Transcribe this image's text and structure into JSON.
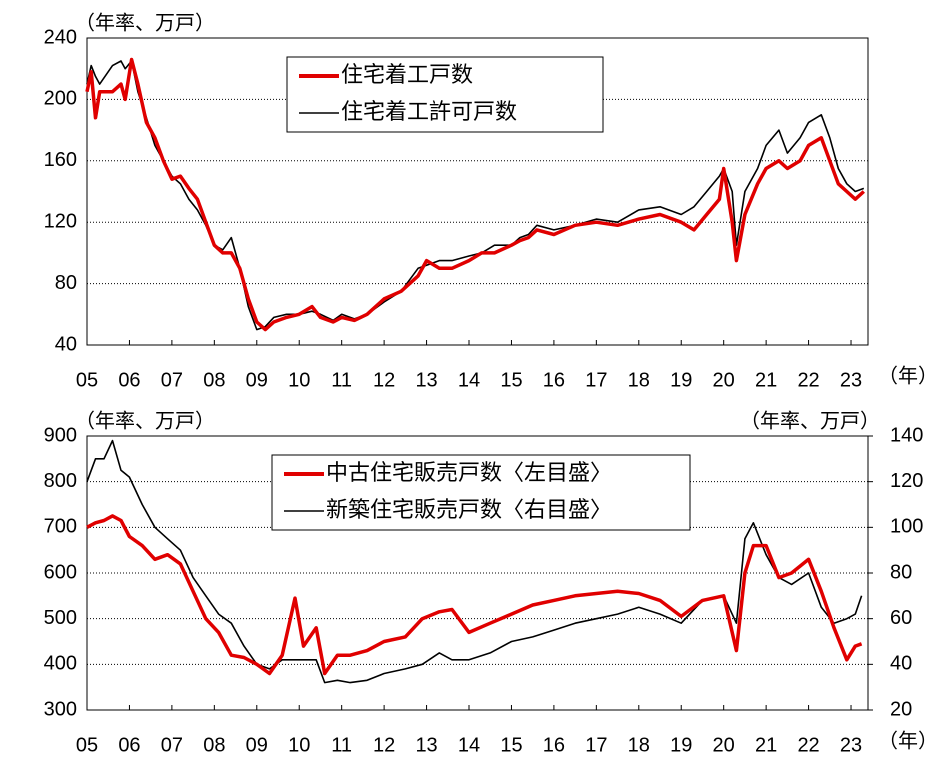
{
  "chart_data": [
    {
      "type": "line",
      "y_label": "（年率、万戸）",
      "x_label": "（年）",
      "xlim": [
        2005,
        2023.4
      ],
      "xticks": [
        {
          "value": 2005,
          "label": "05"
        },
        {
          "value": 2006,
          "label": "06"
        },
        {
          "value": 2007,
          "label": "07"
        },
        {
          "value": 2008,
          "label": "08"
        },
        {
          "value": 2009,
          "label": "09"
        },
        {
          "value": 2010,
          "label": "10"
        },
        {
          "value": 2011,
          "label": "11"
        },
        {
          "value": 2012,
          "label": "12"
        },
        {
          "value": 2013,
          "label": "13"
        },
        {
          "value": 2014,
          "label": "14"
        },
        {
          "value": 2015,
          "label": "15"
        },
        {
          "value": 2016,
          "label": "16"
        },
        {
          "value": 2017,
          "label": "17"
        },
        {
          "value": 2018,
          "label": "18"
        },
        {
          "value": 2019,
          "label": "19"
        },
        {
          "value": 2020,
          "label": "20"
        },
        {
          "value": 2021,
          "label": "21"
        },
        {
          "value": 2022,
          "label": "22"
        },
        {
          "value": 2023,
          "label": "23"
        }
      ],
      "ylim": [
        40,
        240
      ],
      "yticks": [
        40,
        80,
        120,
        160,
        200,
        240
      ],
      "grid": true,
      "x": [
        2005.0,
        2005.1,
        2005.2,
        2005.3,
        2005.6,
        2005.8,
        2005.9,
        2006.05,
        2006.2,
        2006.4,
        2006.6,
        2006.8,
        2007.0,
        2007.2,
        2007.4,
        2007.6,
        2007.8,
        2008.0,
        2008.2,
        2008.4,
        2008.6,
        2008.8,
        2009.0,
        2009.2,
        2009.4,
        2009.7,
        2010.0,
        2010.3,
        2010.5,
        2010.8,
        2011.0,
        2011.3,
        2011.6,
        2012.0,
        2012.4,
        2012.8,
        2013.0,
        2013.3,
        2013.6,
        2014.0,
        2014.3,
        2014.6,
        2015.0,
        2015.2,
        2015.4,
        2015.6,
        2016.0,
        2016.5,
        2017.0,
        2017.5,
        2018.0,
        2018.5,
        2019.0,
        2019.3,
        2019.6,
        2019.9,
        2020.0,
        2020.2,
        2020.3,
        2020.5,
        2020.8,
        2021.0,
        2021.3,
        2021.5,
        2021.8,
        2022.0,
        2022.3,
        2022.5,
        2022.7,
        2022.9,
        2023.1,
        2023.3
      ],
      "series": [
        {
          "name": "住宅着工戸数",
          "color": "#e00000",
          "values": [
            205,
            218,
            188,
            205,
            205,
            210,
            200,
            226,
            210,
            185,
            175,
            160,
            148,
            150,
            142,
            135,
            120,
            105,
            100,
            100,
            90,
            70,
            55,
            50,
            55,
            58,
            60,
            65,
            58,
            55,
            58,
            56,
            60,
            70,
            75,
            85,
            95,
            90,
            90,
            95,
            100,
            100,
            105,
            108,
            110,
            115,
            112,
            118,
            120,
            118,
            122,
            125,
            120,
            115,
            125,
            135,
            155,
            120,
            95,
            125,
            145,
            155,
            160,
            155,
            160,
            170,
            175,
            160,
            145,
            140,
            135,
            140
          ]
        },
        {
          "name": "住宅着工許可戸数",
          "color": "#000000",
          "values": [
            210,
            222,
            215,
            210,
            222,
            225,
            220,
            225,
            205,
            188,
            170,
            160,
            150,
            145,
            135,
            128,
            118,
            105,
            102,
            110,
            90,
            65,
            50,
            52,
            58,
            60,
            60,
            62,
            60,
            56,
            60,
            57,
            60,
            68,
            75,
            90,
            92,
            95,
            95,
            98,
            100,
            105,
            105,
            110,
            112,
            118,
            115,
            118,
            122,
            120,
            128,
            130,
            125,
            130,
            140,
            150,
            155,
            140,
            105,
            140,
            155,
            170,
            180,
            165,
            175,
            185,
            190,
            175,
            155,
            145,
            140,
            142
          ]
        }
      ]
    },
    {
      "type": "line",
      "y_label": "（年率、万戸）",
      "y2_label": "（年率、万戸）",
      "x_label": "（年）",
      "xlim": [
        2005,
        2023.4
      ],
      "xticks": [
        {
          "value": 2005,
          "label": "05"
        },
        {
          "value": 2006,
          "label": "06"
        },
        {
          "value": 2007,
          "label": "07"
        },
        {
          "value": 2008,
          "label": "08"
        },
        {
          "value": 2009,
          "label": "09"
        },
        {
          "value": 2010,
          "label": "10"
        },
        {
          "value": 2011,
          "label": "11"
        },
        {
          "value": 2012,
          "label": "12"
        },
        {
          "value": 2013,
          "label": "13"
        },
        {
          "value": 2014,
          "label": "14"
        },
        {
          "value": 2015,
          "label": "15"
        },
        {
          "value": 2016,
          "label": "16"
        },
        {
          "value": 2017,
          "label": "17"
        },
        {
          "value": 2018,
          "label": "18"
        },
        {
          "value": 2019,
          "label": "19"
        },
        {
          "value": 2020,
          "label": "20"
        },
        {
          "value": 2021,
          "label": "21"
        },
        {
          "value": 2022,
          "label": "22"
        },
        {
          "value": 2023,
          "label": "23"
        }
      ],
      "ylim": [
        300,
        900
      ],
      "yticks": [
        300,
        400,
        500,
        600,
        700,
        800,
        900
      ],
      "y2lim": [
        20,
        140
      ],
      "y2ticks": [
        20,
        40,
        60,
        80,
        100,
        120,
        140
      ],
      "grid": true,
      "x": [
        2005.0,
        2005.2,
        2005.4,
        2005.6,
        2005.8,
        2006.0,
        2006.3,
        2006.6,
        2006.9,
        2007.2,
        2007.5,
        2007.8,
        2008.1,
        2008.4,
        2008.7,
        2009.0,
        2009.3,
        2009.6,
        2009.9,
        2010.1,
        2010.4,
        2010.6,
        2010.9,
        2011.2,
        2011.6,
        2012.0,
        2012.5,
        2012.9,
        2013.3,
        2013.6,
        2014.0,
        2014.5,
        2015.0,
        2015.5,
        2016.0,
        2016.5,
        2017.0,
        2017.5,
        2018.0,
        2018.5,
        2019.0,
        2019.5,
        2020.0,
        2020.3,
        2020.5,
        2020.7,
        2021.0,
        2021.3,
        2021.6,
        2022.0,
        2022.3,
        2022.6,
        2022.9,
        2023.1,
        2023.25
      ],
      "series": [
        {
          "name": "中古住宅販売戸数〈左目盛〉",
          "color": "#e00000",
          "values": [
            700,
            710,
            715,
            725,
            715,
            680,
            660,
            630,
            640,
            620,
            560,
            500,
            470,
            420,
            415,
            400,
            380,
            420,
            545,
            440,
            480,
            380,
            420,
            420,
            430,
            450,
            460,
            500,
            515,
            520,
            470,
            490,
            510,
            530,
            540,
            550,
            555,
            560,
            555,
            540,
            505,
            540,
            550,
            430,
            600,
            660,
            660,
            590,
            600,
            630,
            560,
            480,
            410,
            440,
            445
          ]
        },
        {
          "name": "新築住宅販売戸数〈右目盛〉",
          "color": "#000000",
          "axis": "y2",
          "values": [
            120,
            130,
            130,
            138,
            125,
            122,
            110,
            100,
            95,
            90,
            78,
            70,
            62,
            58,
            48,
            40,
            38,
            42,
            42,
            42,
            42,
            32,
            33,
            32,
            33,
            36,
            38,
            40,
            45,
            42,
            42,
            45,
            50,
            52,
            55,
            58,
            60,
            62,
            65,
            62,
            58,
            68,
            70,
            58,
            95,
            102,
            88,
            78,
            75,
            80,
            65,
            58,
            60,
            62,
            70
          ]
        }
      ]
    }
  ]
}
